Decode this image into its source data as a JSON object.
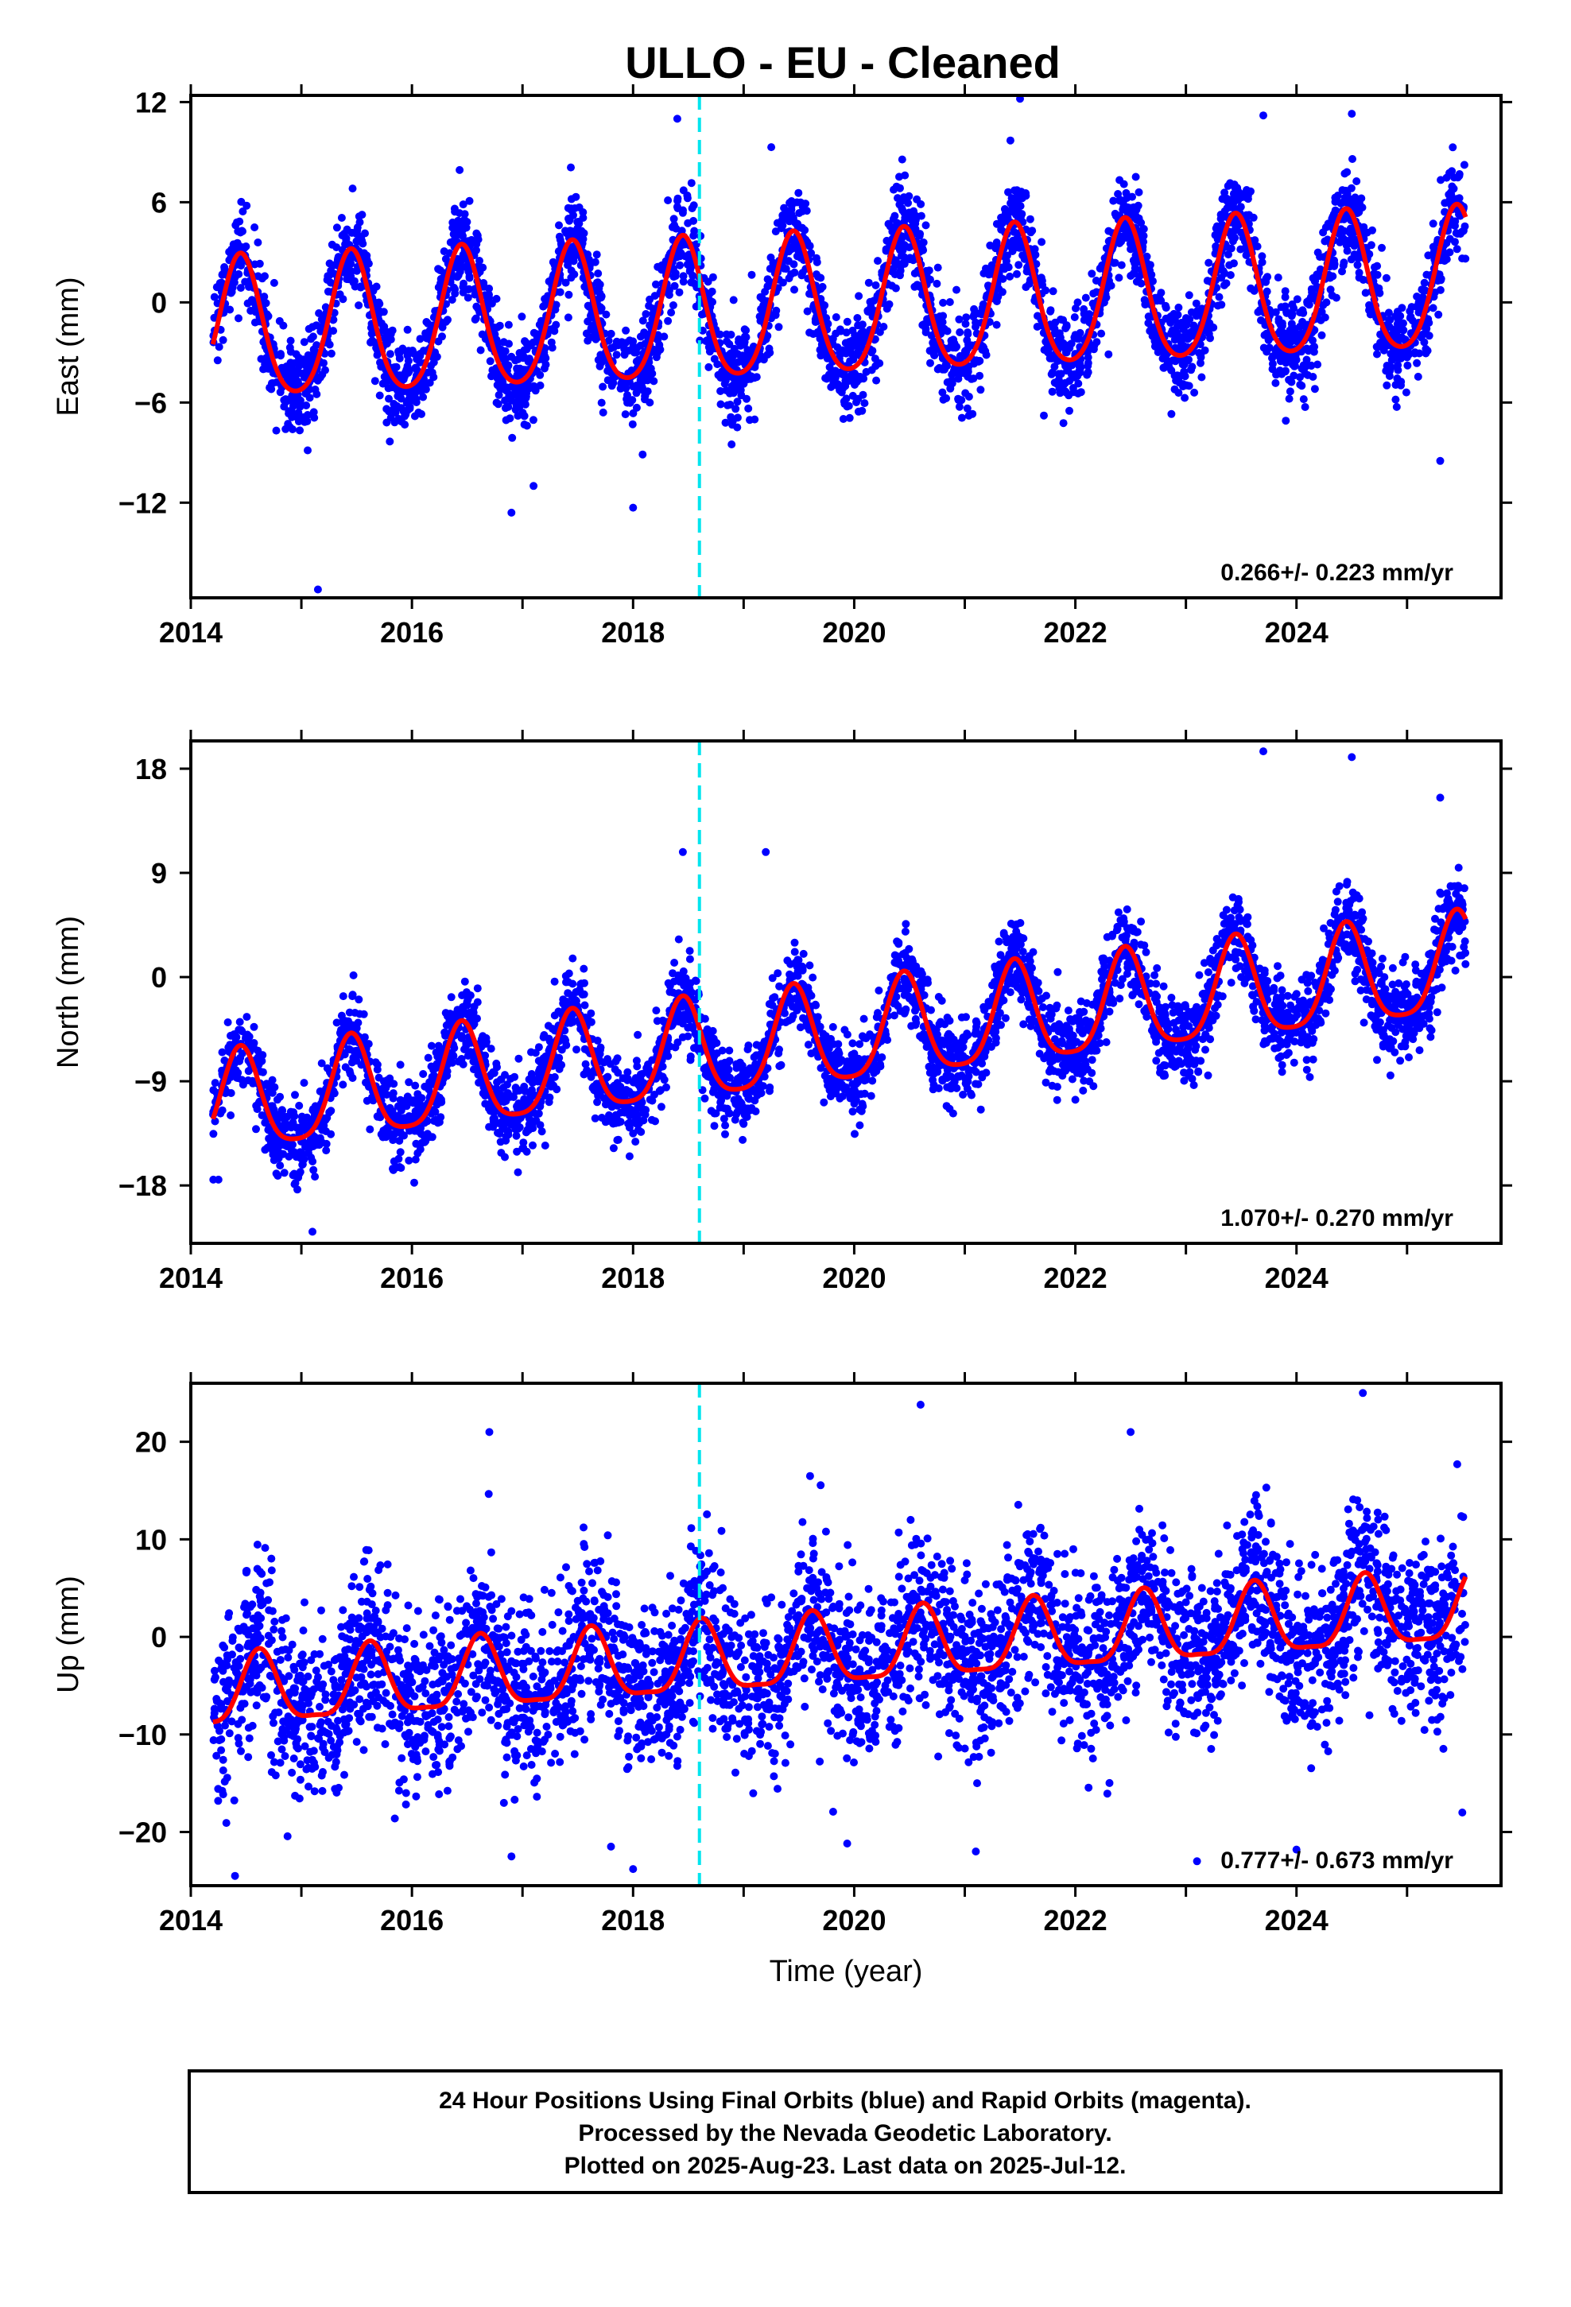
{
  "title": "ULLO  - EU - Cleaned",
  "footer": {
    "lines": [
      "24 Hour Positions Using Final Orbits (blue) and Rapid Orbits (magenta).",
      "Processed by the Nevada Geodetic Laboratory.",
      "Plotted on 2025-Aug-23. Last data on 2025-Jul-12."
    ]
  },
  "colors": {
    "points": "#0000ff",
    "fit": "#ff0000",
    "event_line": "#00e5ee",
    "frame": "#000000"
  },
  "chart_data": [
    {
      "type": "scatter",
      "component": "east",
      "ylabel": "East (mm)",
      "xlabel": "",
      "xlim": [
        2014.0,
        2025.85
      ],
      "ylim": [
        -17.7,
        12.4
      ],
      "x_ticks": [
        2014,
        2016,
        2018,
        2020,
        2022,
        2024
      ],
      "y_ticks": [
        12,
        6,
        0,
        -6,
        -12
      ],
      "y_tick_labels": [
        "12",
        "6",
        "0",
        "−6",
        "−12"
      ],
      "rate_label": "0.266+/- 0.223 mm/yr",
      "event_line_x": 2018.6,
      "data_start": 2014.2,
      "data_end": 2025.53,
      "trend": {
        "offset": -0.4,
        "rate": 0.266,
        "annual_amp": 4.2,
        "annual_phase_peak": 0.45,
        "semiannual_amp": 0.6,
        "noise_sd": 1.4
      },
      "series": [
        {
          "name": "",
          "kind": "points",
          "count": 3900
        },
        {
          "name": "",
          "kind": "fit"
        }
      ],
      "outliers": [
        [
          2015.15,
          -17.2
        ],
        [
          2016.9,
          -12.6
        ],
        [
          2017.1,
          -11.0
        ],
        [
          2018.0,
          -12.3
        ],
        [
          2018.4,
          11.0
        ],
        [
          2019.25,
          9.3
        ],
        [
          2021.5,
          12.2
        ],
        [
          2023.7,
          11.2
        ],
        [
          2024.5,
          11.3
        ],
        [
          2025.3,
          -9.5
        ]
      ]
    },
    {
      "type": "scatter",
      "component": "north",
      "ylabel": "North (mm)",
      "xlabel": "",
      "xlim": [
        2014.0,
        2025.85
      ],
      "ylim": [
        -23.0,
        20.4
      ],
      "x_ticks": [
        2014,
        2016,
        2018,
        2020,
        2022,
        2024
      ],
      "y_ticks": [
        18,
        9,
        0,
        -9,
        -18
      ],
      "y_tick_labels": [
        "18",
        "9",
        "0",
        "−9",
        "−18"
      ],
      "rate_label": "1.070+/- 0.270 mm/yr",
      "event_line_x": 2018.6,
      "data_start": 2014.2,
      "data_end": 2025.53,
      "trend": {
        "offset": -5.3,
        "rate": 1.07,
        "annual_amp": 4.3,
        "annual_phase_peak": 0.45,
        "semiannual_amp": 0.9,
        "noise_sd": 1.8
      },
      "series": [
        {
          "name": "",
          "kind": "points",
          "count": 3900
        },
        {
          "name": "",
          "kind": "fit"
        }
      ],
      "outliers": [
        [
          2014.25,
          -17.5
        ],
        [
          2015.1,
          -22.0
        ],
        [
          2017.0,
          -14.8
        ],
        [
          2018.0,
          -13.5
        ],
        [
          2018.45,
          10.8
        ],
        [
          2019.2,
          10.8
        ],
        [
          2020.05,
          -12.8
        ],
        [
          2022.0,
          -10.6
        ],
        [
          2023.2,
          -8.5
        ],
        [
          2023.7,
          19.5
        ],
        [
          2024.5,
          19.0
        ],
        [
          2024.85,
          -8.5
        ],
        [
          2025.3,
          15.5
        ]
      ]
    },
    {
      "type": "scatter",
      "component": "up",
      "ylabel": "Up (mm)",
      "xlabel": "Time (year)",
      "xlim": [
        2014.0,
        2025.85
      ],
      "ylim": [
        -25.5,
        26.0
      ],
      "x_ticks": [
        2014,
        2016,
        2018,
        2020,
        2022,
        2024
      ],
      "y_ticks": [
        20,
        10,
        0,
        -10,
        -20
      ],
      "y_tick_labels": [
        "20",
        "10",
        "0",
        "−10",
        "−20"
      ],
      "rate_label": "0.777+/- 0.673 mm/yr",
      "event_line_x": 2018.6,
      "data_start": 2014.2,
      "data_end": 2025.53,
      "trend": {
        "offset": -1.7,
        "rate": 0.777,
        "annual_amp": 3.6,
        "annual_phase_peak": 0.62,
        "semiannual_amp": 1.0,
        "noise_sd": 4.4
      },
      "series": [
        {
          "name": "",
          "kind": "points",
          "count": 3900
        },
        {
          "name": "",
          "kind": "fit"
        }
      ],
      "outliers": [
        [
          2014.4,
          -24.5
        ],
        [
          2016.7,
          21.0
        ],
        [
          2016.9,
          -22.5
        ],
        [
          2017.8,
          -21.5
        ],
        [
          2018.0,
          -23.8
        ],
        [
          2020.6,
          23.8
        ],
        [
          2021.1,
          -22.0
        ],
        [
          2022.5,
          21.0
        ],
        [
          2023.1,
          -23.0
        ],
        [
          2024.0,
          -21.8
        ],
        [
          2024.6,
          25.0
        ],
        [
          2025.5,
          -18.0
        ]
      ]
    }
  ]
}
